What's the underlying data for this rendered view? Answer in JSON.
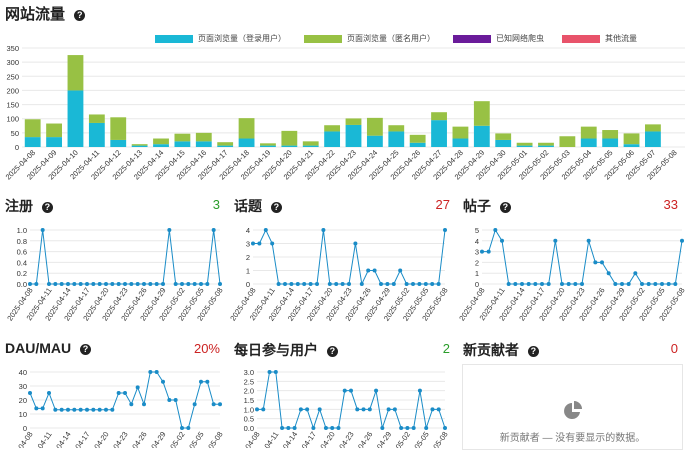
{
  "page_title": "网站流量",
  "colors": {
    "logged": "#1ab8d6",
    "anon": "#98c144",
    "crawler": "#6a1b9a",
    "other": "#e8536a",
    "line": "#1a8cc7",
    "up": "#2a9d2a",
    "down": "#cc2222"
  },
  "traffic": {
    "legend": [
      "页面浏览量（登录用户）",
      "页面浏览量（匿名用户）",
      "已知网络爬虫",
      "其他流量"
    ]
  },
  "sections": {
    "signups": {
      "title": "注册",
      "value": "3"
    },
    "topics": {
      "title": "话题",
      "value": "27"
    },
    "posts": {
      "title": "帖子",
      "value": "33"
    },
    "daumau": {
      "title": "DAU/MAU",
      "value": "20%"
    },
    "dau": {
      "title": "每日参与用户",
      "value": "2"
    },
    "contributors": {
      "title": "新贡献者",
      "value": "0",
      "empty_text": "新贡献者 — 没有要显示的数据。"
    }
  },
  "chart_data": [
    {
      "type": "bar",
      "name": "traffic",
      "categories": [
        "2025-04-08",
        "2025-04-09",
        "2025-04-10",
        "2025-04-11",
        "2025-04-12",
        "2025-04-13",
        "2025-04-14",
        "2025-04-15",
        "2025-04-16",
        "2025-04-17",
        "2025-04-18",
        "2025-04-19",
        "2025-04-20",
        "2025-04-21",
        "2025-04-22",
        "2025-04-23",
        "2025-04-24",
        "2025-04-25",
        "2025-04-26",
        "2025-04-27",
        "2025-04-28",
        "2025-04-29",
        "2025-04-30",
        "2025-05-01",
        "2025-05-02",
        "2025-05-03",
        "2025-05-04",
        "2025-05-05",
        "2025-05-06",
        "2025-05-07",
        "2025-05-08"
      ],
      "series": [
        {
          "name": "页面浏览量（登录用户）",
          "values": [
            35,
            35,
            200,
            85,
            25,
            5,
            10,
            20,
            20,
            5,
            30,
            5,
            5,
            5,
            55,
            78,
            40,
            55,
            15,
            95,
            30,
            75,
            25,
            5,
            5,
            0,
            30,
            30,
            10,
            55,
            0
          ]
        },
        {
          "name": "页面浏览量（匿名用户）",
          "values": [
            63,
            48,
            125,
            30,
            80,
            5,
            20,
            27,
            30,
            12,
            72,
            8,
            52,
            15,
            22,
            23,
            63,
            22,
            28,
            28,
            42,
            87,
            23,
            10,
            10,
            38,
            42,
            30,
            38,
            25,
            0
          ]
        },
        {
          "name": "已知网络爬虫",
          "values": [
            0,
            0,
            0,
            0,
            0,
            0,
            0,
            0,
            0,
            0,
            0,
            0,
            0,
            0,
            0,
            0,
            0,
            0,
            0,
            0,
            0,
            0,
            0,
            0,
            0,
            0,
            0,
            0,
            0,
            0,
            0
          ]
        },
        {
          "name": "其他流量",
          "values": [
            0,
            0,
            0,
            0,
            0,
            0,
            0,
            0,
            0,
            0,
            0,
            0,
            0,
            0,
            0,
            0,
            0,
            0,
            0,
            0,
            0,
            0,
            0,
            0,
            0,
            0,
            0,
            0,
            0,
            0,
            0
          ]
        }
      ],
      "ylim": [
        0,
        350
      ],
      "yticks": [
        0,
        50,
        100,
        150,
        200,
        250,
        300,
        350
      ],
      "legend": "top-center",
      "grid": true
    },
    {
      "type": "line",
      "name": "signups",
      "x": [
        "2025-04-08",
        "2025-04-09",
        "2025-04-10",
        "2025-04-11",
        "2025-04-12",
        "2025-04-13",
        "2025-04-14",
        "2025-04-15",
        "2025-04-16",
        "2025-04-17",
        "2025-04-18",
        "2025-04-19",
        "2025-04-20",
        "2025-04-21",
        "2025-04-22",
        "2025-04-23",
        "2025-04-24",
        "2025-04-25",
        "2025-04-26",
        "2025-04-27",
        "2025-04-28",
        "2025-04-29",
        "2025-04-30",
        "2025-05-01",
        "2025-05-02",
        "2025-05-03",
        "2025-05-04",
        "2025-05-05",
        "2025-05-06",
        "2025-05-07",
        "2025-05-08"
      ],
      "values": [
        0,
        0,
        1,
        0,
        0,
        0,
        0,
        0,
        0,
        0,
        0,
        0,
        0,
        0,
        0,
        0,
        0,
        0,
        0,
        0,
        0,
        0,
        1,
        0,
        0,
        0,
        0,
        0,
        0,
        1,
        0
      ],
      "ylim": [
        0,
        1.0
      ],
      "yticks": [
        "0.0",
        "0.2",
        "0.4",
        "0.6",
        "0.8",
        "1.0"
      ],
      "xticks": [
        "2025-04-08",
        "2025-04-11",
        "2025-04-14",
        "2025-04-17",
        "2025-04-20",
        "2025-04-23",
        "2025-04-26",
        "2025-04-29",
        "2025-05-02",
        "2025-05-05",
        "2025-05-08"
      ],
      "grid": true
    },
    {
      "type": "line",
      "name": "topics",
      "x": [
        "2025-04-08",
        "2025-04-09",
        "2025-04-10",
        "2025-04-11",
        "2025-04-12",
        "2025-04-13",
        "2025-04-14",
        "2025-04-15",
        "2025-04-16",
        "2025-04-17",
        "2025-04-18",
        "2025-04-19",
        "2025-04-20",
        "2025-04-21",
        "2025-04-22",
        "2025-04-23",
        "2025-04-24",
        "2025-04-25",
        "2025-04-26",
        "2025-04-27",
        "2025-04-28",
        "2025-04-29",
        "2025-04-30",
        "2025-05-01",
        "2025-05-02",
        "2025-05-03",
        "2025-05-04",
        "2025-05-05",
        "2025-05-06",
        "2025-05-07",
        "2025-05-08"
      ],
      "values": [
        3,
        3,
        4,
        3,
        0,
        0,
        0,
        0,
        0,
        0,
        0,
        4,
        0,
        0,
        0,
        0,
        3,
        0,
        1,
        1,
        0,
        0,
        0,
        1,
        0,
        0,
        0,
        0,
        0,
        0,
        4
      ],
      "ylim": [
        0,
        4
      ],
      "yticks": [
        "0",
        "1",
        "2",
        "3",
        "4"
      ],
      "xticks": [
        "2025-04-08",
        "2025-04-11",
        "2025-04-14",
        "2025-04-17",
        "2025-04-20",
        "2025-04-23",
        "2025-04-26",
        "2025-04-29",
        "2025-05-02",
        "2025-05-05",
        "2025-05-08"
      ],
      "grid": true
    },
    {
      "type": "line",
      "name": "posts",
      "x": [
        "2025-04-08",
        "2025-04-09",
        "2025-04-10",
        "2025-04-11",
        "2025-04-12",
        "2025-04-13",
        "2025-04-14",
        "2025-04-15",
        "2025-04-16",
        "2025-04-17",
        "2025-04-18",
        "2025-04-19",
        "2025-04-20",
        "2025-04-21",
        "2025-04-22",
        "2025-04-23",
        "2025-04-24",
        "2025-04-25",
        "2025-04-26",
        "2025-04-27",
        "2025-04-28",
        "2025-04-29",
        "2025-04-30",
        "2025-05-01",
        "2025-05-02",
        "2025-05-03",
        "2025-05-04",
        "2025-05-05",
        "2025-05-06",
        "2025-05-07",
        "2025-05-08"
      ],
      "values": [
        3,
        3,
        5,
        4,
        0,
        0,
        0,
        0,
        0,
        0,
        0,
        4,
        0,
        0,
        0,
        0,
        4,
        2,
        2,
        1,
        0,
        0,
        0,
        1,
        0,
        0,
        0,
        0,
        0,
        0,
        4
      ],
      "ylim": [
        0,
        5
      ],
      "yticks": [
        "0",
        "1",
        "2",
        "3",
        "4",
        "5"
      ],
      "xticks": [
        "2025-04-08",
        "2025-04-11",
        "2025-04-14",
        "2025-04-17",
        "2025-04-20",
        "2025-04-23",
        "2025-04-26",
        "2025-04-29",
        "2025-05-02",
        "2025-05-05",
        "2025-05-08"
      ],
      "grid": true
    },
    {
      "type": "line",
      "name": "daumau",
      "x": [
        "2025-04-08",
        "2025-04-09",
        "2025-04-10",
        "2025-04-11",
        "2025-04-12",
        "2025-04-13",
        "2025-04-14",
        "2025-04-15",
        "2025-04-16",
        "2025-04-17",
        "2025-04-18",
        "2025-04-19",
        "2025-04-20",
        "2025-04-21",
        "2025-04-22",
        "2025-04-23",
        "2025-04-24",
        "2025-04-25",
        "2025-04-26",
        "2025-04-27",
        "2025-04-28",
        "2025-04-29",
        "2025-04-30",
        "2025-05-01",
        "2025-05-02",
        "2025-05-03",
        "2025-05-04",
        "2025-05-05",
        "2025-05-06",
        "2025-05-07",
        "2025-05-08"
      ],
      "values": [
        25,
        14,
        14,
        25,
        13,
        13,
        13,
        13,
        13,
        13,
        13,
        13,
        13,
        13,
        25,
        25,
        17,
        29,
        17,
        40,
        40,
        33,
        20,
        20,
        0,
        0,
        17,
        33,
        33,
        17,
        17
      ],
      "ylim": [
        0,
        40
      ],
      "yticks": [
        "0",
        "10",
        "20",
        "30",
        "40"
      ],
      "xticks": [
        "2025-04-08",
        "2025-04-11",
        "2025-04-14",
        "2025-04-17",
        "2025-04-20",
        "2025-04-23",
        "2025-04-26",
        "2025-04-29",
        "2025-05-02",
        "2025-05-05",
        "2025-05-08"
      ],
      "grid": true
    },
    {
      "type": "line",
      "name": "dau",
      "x": [
        "2025-04-08",
        "2025-04-09",
        "2025-04-10",
        "2025-04-11",
        "2025-04-12",
        "2025-04-13",
        "2025-04-14",
        "2025-04-15",
        "2025-04-16",
        "2025-04-17",
        "2025-04-18",
        "2025-04-19",
        "2025-04-20",
        "2025-04-21",
        "2025-04-22",
        "2025-04-23",
        "2025-04-24",
        "2025-04-25",
        "2025-04-26",
        "2025-04-27",
        "2025-04-28",
        "2025-04-29",
        "2025-04-30",
        "2025-05-01",
        "2025-05-02",
        "2025-05-03",
        "2025-05-04",
        "2025-05-05",
        "2025-05-06",
        "2025-05-07",
        "2025-05-08"
      ],
      "values": [
        1,
        1,
        3,
        3,
        0,
        0,
        0,
        1,
        1,
        0,
        1,
        0,
        0,
        0,
        2,
        2,
        1,
        1,
        1,
        2,
        0,
        1,
        1,
        0,
        0,
        0,
        2,
        0,
        1,
        1,
        0
      ],
      "ylim": [
        0,
        3.0
      ],
      "yticks": [
        "0.0",
        "0.5",
        "1.0",
        "1.5",
        "2.0",
        "2.5",
        "3.0"
      ],
      "xticks": [
        "2025-04-08",
        "2025-04-11",
        "2025-04-14",
        "2025-04-17",
        "2025-04-20",
        "2025-04-23",
        "2025-04-26",
        "2025-04-29",
        "2025-05-02",
        "2025-05-05",
        "2025-05-08"
      ],
      "grid": true
    }
  ]
}
